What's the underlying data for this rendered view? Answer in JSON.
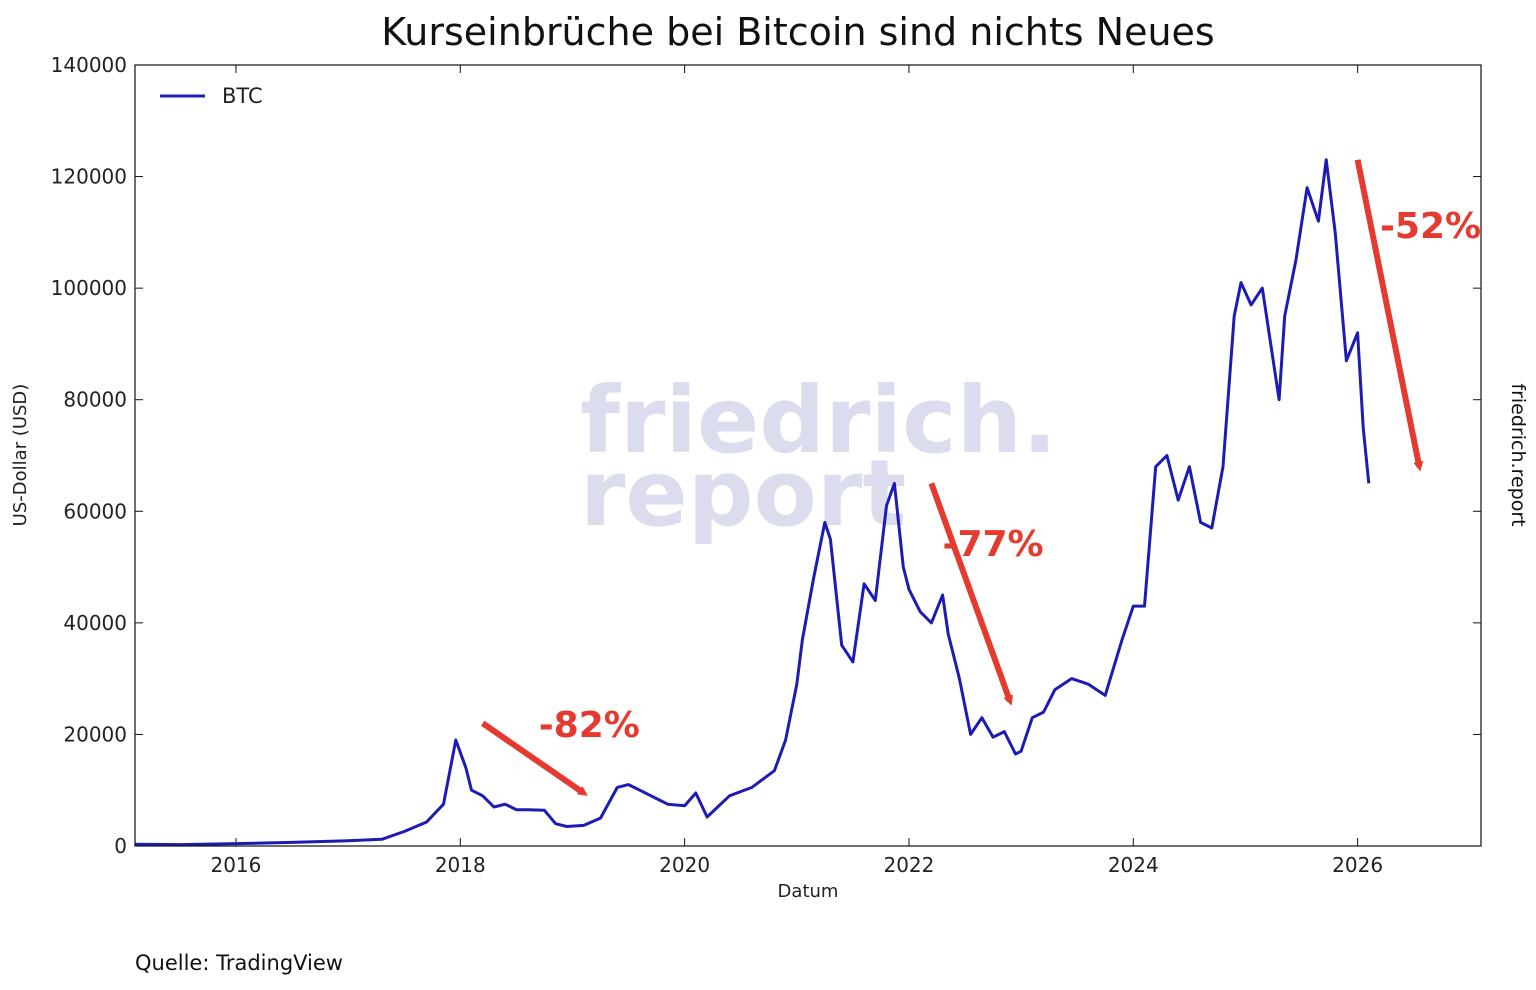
{
  "chart_data": {
    "type": "line",
    "title": "Kurseinbrüche bei Bitcoin sind nichts Neues",
    "xlabel": "Datum",
    "ylabel": "US-Dollar (USD)",
    "xlim": [
      2015.1,
      2027.1
    ],
    "ylim": [
      0,
      140000
    ],
    "x_ticks": [
      2016,
      2018,
      2020,
      2022,
      2024,
      2026
    ],
    "y_ticks": [
      0,
      20000,
      40000,
      60000,
      80000,
      100000,
      120000,
      140000
    ],
    "legend": {
      "label": "BTC",
      "position": "top-left",
      "color": "#1c1cb4"
    },
    "series": [
      {
        "name": "BTC",
        "color": "#1c1cb4",
        "x": [
          2015.1,
          2015.5,
          2016.0,
          2016.5,
          2017.0,
          2017.3,
          2017.5,
          2017.7,
          2017.85,
          2017.96,
          2018.05,
          2018.1,
          2018.2,
          2018.3,
          2018.4,
          2018.5,
          2018.6,
          2018.75,
          2018.85,
          2018.95,
          2019.1,
          2019.25,
          2019.4,
          2019.5,
          2019.6,
          2019.75,
          2019.85,
          2020.0,
          2020.1,
          2020.2,
          2020.4,
          2020.6,
          2020.8,
          2020.9,
          2021.0,
          2021.05,
          2021.15,
          2021.25,
          2021.3,
          2021.4,
          2021.5,
          2021.6,
          2021.7,
          2021.8,
          2021.87,
          2021.95,
          2022.0,
          2022.1,
          2022.2,
          2022.3,
          2022.35,
          2022.45,
          2022.55,
          2022.65,
          2022.75,
          2022.85,
          2022.95,
          2023.0,
          2023.1,
          2023.2,
          2023.3,
          2023.45,
          2023.6,
          2023.75,
          2023.9,
          2024.0,
          2024.1,
          2024.2,
          2024.3,
          2024.4,
          2024.5,
          2024.6,
          2024.7,
          2024.8,
          2024.9,
          2024.96,
          2025.05,
          2025.15,
          2025.3,
          2025.35,
          2025.45,
          2025.55,
          2025.65,
          2025.72,
          2025.8,
          2025.9,
          2026.0,
          2026.05,
          2026.1
        ],
        "values": [
          300,
          250,
          430,
          650,
          950,
          1200,
          2600,
          4300,
          7500,
          19000,
          14000,
          10000,
          9000,
          7000,
          7500,
          6500,
          6500,
          6400,
          4000,
          3500,
          3700,
          5000,
          10500,
          11000,
          10000,
          8500,
          7500,
          7200,
          9500,
          5200,
          9000,
          10500,
          13500,
          19000,
          29000,
          37000,
          48000,
          58000,
          55000,
          36000,
          33000,
          47000,
          44000,
          61000,
          65000,
          50000,
          46000,
          42000,
          40000,
          45000,
          38000,
          30000,
          20000,
          23000,
          19500,
          20500,
          16500,
          17000,
          23000,
          24000,
          28000,
          30000,
          29000,
          27000,
          37000,
          43000,
          43000,
          68000,
          70000,
          62000,
          68000,
          58000,
          57000,
          68000,
          95000,
          101000,
          97000,
          100000,
          80000,
          95000,
          105000,
          118000,
          112000,
          123000,
          110000,
          87000,
          92000,
          75000,
          65000
        ]
      }
    ],
    "annotations": [
      {
        "text": "-82%",
        "from": [
          2018.2,
          22000
        ],
        "to": [
          2019.1,
          9500
        ]
      },
      {
        "text": "-77%",
        "from": [
          2022.2,
          65000
        ],
        "to": [
          2022.9,
          26000
        ]
      },
      {
        "text": "-52%",
        "from": [
          2026.0,
          123000
        ],
        "to": [
          2026.55,
          68000
        ]
      }
    ],
    "annotation_color": "#e53a2f",
    "watermark": [
      "friedrich.",
      "report"
    ],
    "side_text": "friedrich.report",
    "source": "Quelle: TradingView"
  }
}
